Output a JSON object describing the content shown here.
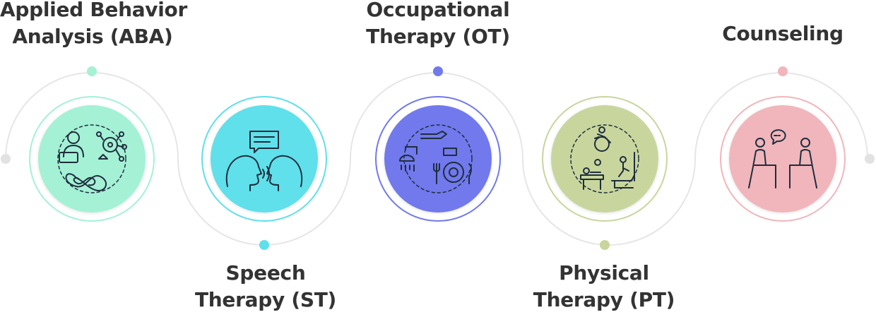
{
  "colors": {
    "track": "#e6e6e6",
    "aba": "#a4f1d6",
    "st": "#5ee0ea",
    "ot": "#7179ec",
    "pt": "#c8d69e",
    "counsel": "#f0b6bb",
    "text": "#333333",
    "icon_stroke": "#1f2d3d"
  },
  "therapies": [
    {
      "key": "aba",
      "lines": [
        "Applied Behavior",
        "Analysis (ABA)"
      ],
      "icon": "aba-icon"
    },
    {
      "key": "st",
      "lines": [
        "Speech",
        "Therapy (ST)"
      ],
      "icon": "speech-icon"
    },
    {
      "key": "ot",
      "lines": [
        "Occupational",
        "Therapy (OT)"
      ],
      "icon": "occupational-icon"
    },
    {
      "key": "pt",
      "lines": [
        "Physical",
        "Therapy (PT)"
      ],
      "icon": "physical-icon"
    },
    {
      "key": "counsel",
      "lines": [
        "Counseling"
      ],
      "icon": "counseling-icon"
    }
  ]
}
